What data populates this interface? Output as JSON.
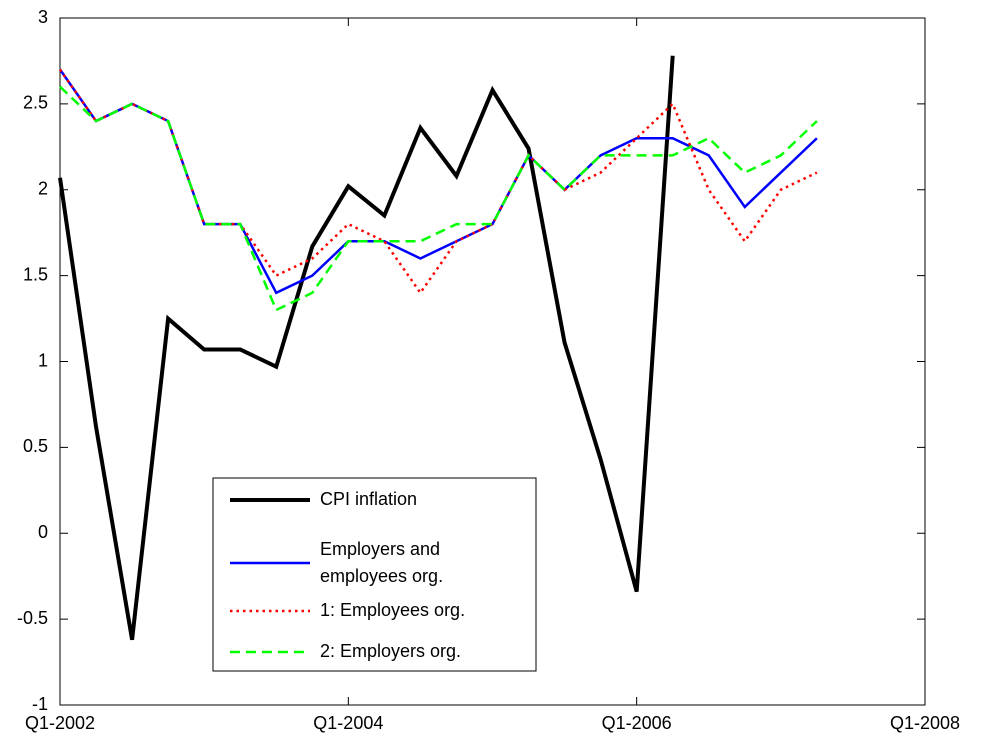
{
  "chart_data": {
    "type": "line",
    "x": [
      0,
      1,
      2,
      3,
      4,
      5,
      6,
      7,
      8,
      9,
      10,
      11,
      12,
      13,
      14,
      15,
      16,
      17,
      18,
      19,
      20,
      21
    ],
    "xlim": [
      0,
      24
    ],
    "xticks": [
      {
        "value": 0,
        "label": "Q1-2002"
      },
      {
        "value": 8,
        "label": "Q1-2004"
      },
      {
        "value": 16,
        "label": "Q1-2006"
      },
      {
        "value": 24,
        "label": "Q1-2008"
      }
    ],
    "ylim": [
      -1,
      3
    ],
    "yticks": [
      -1,
      -0.5,
      0,
      0.5,
      1,
      1.5,
      2,
      2.5,
      3
    ],
    "grid": false,
    "legend": "lower-left",
    "series": [
      {
        "name": "CPI inflation",
        "color": "#000000",
        "style": "solid",
        "width": 4,
        "values": [
          2.07,
          0.62,
          -0.62,
          1.25,
          1.07,
          1.07,
          0.97,
          1.67,
          2.02,
          1.85,
          2.36,
          2.08,
          2.58,
          2.24,
          1.11,
          0.43,
          -0.34,
          2.78,
          null,
          null,
          null,
          null
        ]
      },
      {
        "name": "Employers and employees org.",
        "color": "#0000ff",
        "style": "solid",
        "width": 2.5,
        "values": [
          2.7,
          2.4,
          2.5,
          2.4,
          1.8,
          1.8,
          1.4,
          1.5,
          1.7,
          1.7,
          1.6,
          1.7,
          1.8,
          2.2,
          2.0,
          2.2,
          2.3,
          2.3,
          2.2,
          1.9,
          2.1,
          2.3
        ]
      },
      {
        "name": "1: Employees org.",
        "color": "#ff0000",
        "style": "dotted",
        "width": 2.5,
        "values": [
          2.7,
          2.4,
          2.5,
          2.4,
          1.8,
          1.8,
          1.5,
          1.6,
          1.8,
          1.7,
          1.4,
          1.7,
          1.8,
          2.2,
          2.0,
          2.1,
          2.3,
          2.5,
          2.0,
          1.7,
          2.0,
          2.1
        ]
      },
      {
        "name": "2: Employers org.",
        "color": "#00ff00",
        "style": "dashed",
        "width": 2.5,
        "values": [
          2.6,
          2.4,
          2.5,
          2.4,
          1.8,
          1.8,
          1.3,
          1.4,
          1.7,
          1.7,
          1.7,
          1.8,
          1.8,
          2.2,
          2.0,
          2.2,
          2.2,
          2.2,
          2.3,
          2.1,
          2.2,
          2.4
        ]
      }
    ]
  }
}
